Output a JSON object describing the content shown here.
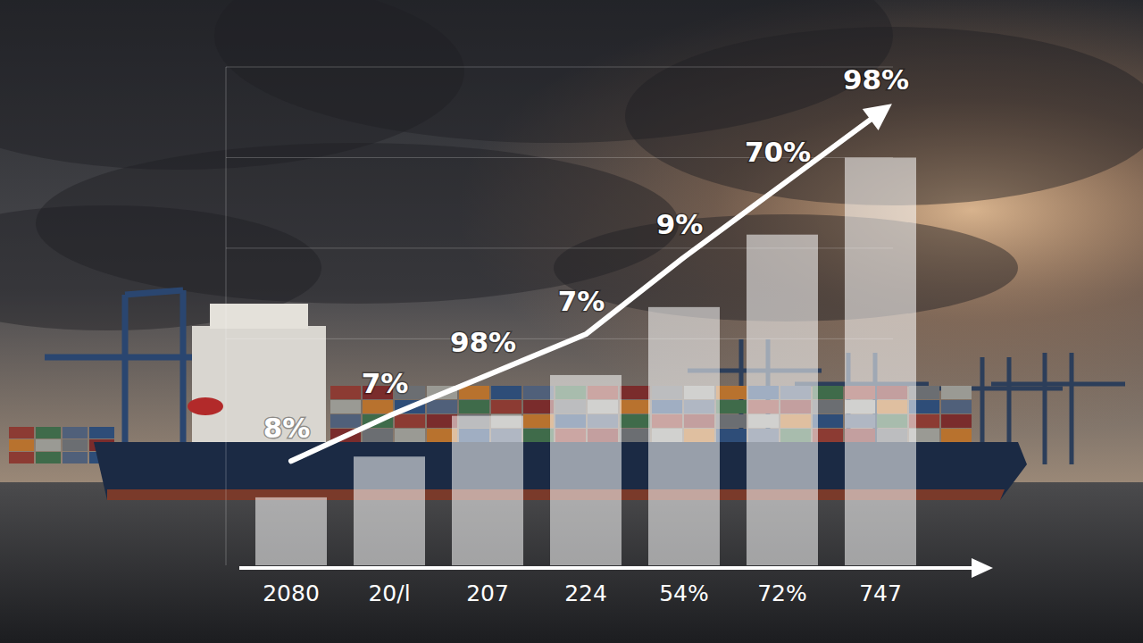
{
  "chart_data": {
    "type": "bar",
    "categories": [
      "2080",
      "20/l",
      "207",
      "224",
      "54%",
      "72%",
      "747"
    ],
    "series": [
      {
        "type": "bar",
        "color": "#ffffff",
        "values": [
          15,
          24,
          33,
          42,
          57,
          73,
          90
        ]
      },
      {
        "type": "line",
        "color": "#ffffff",
        "values": [
          23,
          33,
          42,
          51,
          68,
          84,
          100
        ]
      }
    ],
    "annotations": [
      "8%",
      "7%",
      "98%",
      "7%",
      "9%",
      "70%",
      "98%"
    ],
    "ylim": [
      0,
      110
    ],
    "yticks": [
      50,
      70,
      90,
      110
    ],
    "grid": true,
    "tick_labels": "x"
  }
}
